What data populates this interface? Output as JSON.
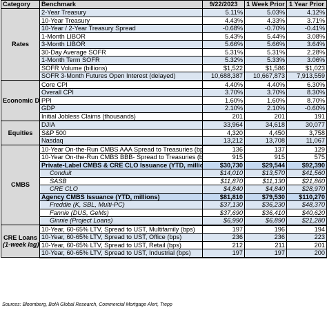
{
  "headers": [
    "Category",
    "Benchmark",
    "9/22/2023",
    "1 Week Prior",
    "1 Year Prior"
  ],
  "sections": [
    {
      "category": "Rates",
      "category_sub": "",
      "rows": [
        {
          "bench": "2-Year Treasury",
          "v": [
            "5.11%",
            "5.03%",
            "4.12%"
          ],
          "style": "shade"
        },
        {
          "bench": "10-Year Treasury",
          "v": [
            "4.43%",
            "4.33%",
            "3.71%"
          ],
          "style": "plain"
        },
        {
          "bench": "10-Year / 2-Year Treasury Spread",
          "v": [
            "-0.68%",
            "-0.70%",
            "-0.41%"
          ],
          "style": "shade"
        },
        {
          "bench": "1-Month LIBOR",
          "v": [
            "5.43%",
            "5.44%",
            "3.08%"
          ],
          "style": "plain"
        },
        {
          "bench": "3-Month LIBOR",
          "v": [
            "5.66%",
            "5.66%",
            "3.64%"
          ],
          "style": "shade"
        },
        {
          "bench": "30-Day Average SOFR",
          "v": [
            "5.31%",
            "5.31%",
            "2.28%"
          ],
          "style": "plain"
        },
        {
          "bench": "1-Month Term SOFR",
          "v": [
            "5.32%",
            "5.33%",
            "3.06%"
          ],
          "style": "shade"
        },
        {
          "bench": "SOFR Volume (billions)",
          "v": [
            "$1,522",
            "$1,586",
            "$1,023"
          ],
          "style": "plain"
        },
        {
          "bench": "SOFR 3-Month Futures Open Interest (delayed)",
          "v": [
            "10,688,387",
            "10,667,873",
            "7,913,559"
          ],
          "style": "shade"
        }
      ]
    },
    {
      "category": "Economic Data",
      "category_sub": "",
      "rows": [
        {
          "bench": "Core CPI",
          "v": [
            "4.40%",
            "4.40%",
            "6.30%"
          ],
          "style": "plain"
        },
        {
          "bench": "Overall CPI",
          "v": [
            "3.70%",
            "3.70%",
            "8.30%"
          ],
          "style": "shade"
        },
        {
          "bench": "PPI",
          "v": [
            "1.60%",
            "1.60%",
            "8.70%"
          ],
          "style": "plain"
        },
        {
          "bench": "GDP",
          "v": [
            "2.10%",
            "2.10%",
            "-0.60%"
          ],
          "style": "shade"
        },
        {
          "bench": "Initial Jobless Claims (thousands)",
          "v": [
            "201",
            "201",
            "191"
          ],
          "style": "plain"
        }
      ]
    },
    {
      "category": "Equities",
      "category_sub": "",
      "rows": [
        {
          "bench": "DJIA",
          "v": [
            "33,964",
            "34,618",
            "30,077"
          ],
          "style": "shade"
        },
        {
          "bench": "S&P 500",
          "v": [
            "4,320",
            "4,450",
            "3,758"
          ],
          "style": "plain"
        },
        {
          "bench": "Nasdaq",
          "v": [
            "13,212",
            "13,708",
            "11,067"
          ],
          "style": "shade"
        }
      ]
    },
    {
      "category": "CMBS",
      "category_sub": "",
      "rows": [
        {
          "bench": "10-Year On-the-Run CMBS AAA Spread to Treasuries (bps)",
          "v": [
            "136",
            "137",
            "129"
          ],
          "style": "plain"
        },
        {
          "bench": "10-Year On-the-Run CMBS BBB- Spread to Treasuries (bps)",
          "v": [
            "915",
            "915",
            "575"
          ],
          "style": "plain"
        },
        {
          "bench": "Private-Label CMBS & CRE CLO Issuance (YTD, millions)",
          "v": [
            "$30,730",
            "$29,544",
            "$92,390"
          ],
          "style": "hl"
        },
        {
          "bench": "Conduit",
          "v": [
            "$14,010",
            "$13,570",
            "$41,560"
          ],
          "style": "sub shade"
        },
        {
          "bench": "SASB",
          "v": [
            "$11,870",
            "$11,130",
            "$21,860"
          ],
          "style": "sub plain"
        },
        {
          "bench": "CRE CLO",
          "v": [
            "$4,840",
            "$4,840",
            "$28,970"
          ],
          "style": "sub shade"
        },
        {
          "bench": "Agency CMBS Issuance (YTD, millions)",
          "v": [
            "$81,810",
            "$79,530",
            "$110,270"
          ],
          "style": "hl"
        },
        {
          "bench": "Freddie (K, SBL, Multi-PC)",
          "v": [
            "$37,130",
            "$36,230",
            "$48,370"
          ],
          "style": "sub shade"
        },
        {
          "bench": "Fannie (DUS, GeMs)",
          "v": [
            "$37,690",
            "$36,410",
            "$40,620"
          ],
          "style": "sub plain"
        },
        {
          "bench": "Ginnie (Project Loans)",
          "v": [
            "$6,990",
            "$6,890",
            "$21,280"
          ],
          "style": "sub shade"
        }
      ]
    },
    {
      "category": "CRE Loans",
      "category_sub": "(1-week lag)",
      "rows": [
        {
          "bench": "10-Year, 60-65% LTV, Spread to UST, Multifamily (bps)",
          "v": [
            "197",
            "196",
            "194"
          ],
          "style": "plain"
        },
        {
          "bench": "10-Year, 60-65% LTV, Spread to UST, Office (bps)",
          "v": [
            "236",
            "236",
            "223"
          ],
          "style": "shade"
        },
        {
          "bench": "10-Year, 60-65% LTV, Spread to UST, Retail (bps)",
          "v": [
            "212",
            "211",
            "201"
          ],
          "style": "plain"
        },
        {
          "bench": "10-Year, 60-65% LTV, Spread to UST, Industrial (bps)",
          "v": [
            "197",
            "197",
            "200"
          ],
          "style": "shade"
        }
      ]
    }
  ],
  "source": "Sources: Bloomberg, BofA Global Research, Commercial Mortgage Alert, Trepp"
}
